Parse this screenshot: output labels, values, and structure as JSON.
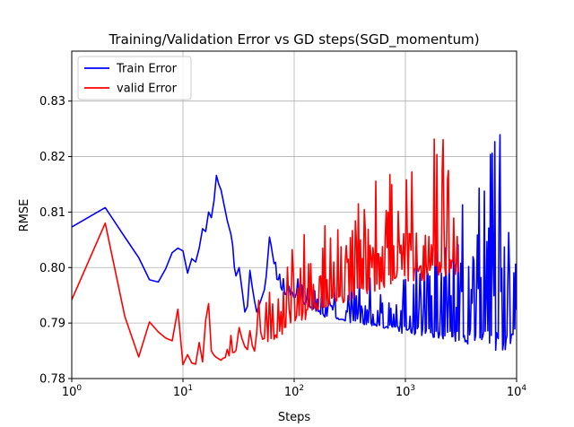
{
  "chart_data": {
    "type": "line",
    "title": "Training/Validation Error vs GD steps(SGD_momentum)",
    "xlabel": "Steps",
    "ylabel": "RMSE",
    "xscale": "log",
    "xlim": [
      1,
      10000
    ],
    "ylim": [
      0.78,
      0.839
    ],
    "grid": true,
    "legend_position": "top-left",
    "x_ticks": [
      1,
      10,
      100,
      1000,
      10000
    ],
    "x_tick_labels": [
      {
        "base": "10",
        "exp": "0"
      },
      {
        "base": "10",
        "exp": "1"
      },
      {
        "base": "10",
        "exp": "2"
      },
      {
        "base": "10",
        "exp": "3"
      },
      {
        "base": "10",
        "exp": "4"
      }
    ],
    "y_ticks": [
      0.78,
      0.79,
      0.8,
      0.81,
      0.82,
      0.83
    ],
    "y_tick_labels": [
      "0.78",
      "0.79",
      "0.80",
      "0.81",
      "0.82",
      "0.83"
    ],
    "series": [
      {
        "name": "Train Error",
        "color": "#0000ff",
        "x": [
          1,
          2,
          3,
          4,
          5,
          6,
          7,
          8,
          9,
          10,
          11,
          12,
          13,
          14,
          15,
          16,
          17,
          18,
          19,
          20,
          21,
          22,
          25,
          27,
          28,
          29,
          30,
          32,
          34,
          36,
          38,
          40,
          43,
          46,
          50,
          55,
          60,
          70,
          80,
          100,
          130,
          160,
          200,
          300,
          500,
          700,
          1000,
          2000,
          3000,
          5000,
          7000,
          10000
        ],
        "y": [
          0.8073,
          0.8108,
          0.8055,
          0.8018,
          0.7978,
          0.7974,
          0.7998,
          0.8027,
          0.8035,
          0.803,
          0.799,
          0.8016,
          0.801,
          0.8035,
          0.807,
          0.8065,
          0.81,
          0.809,
          0.812,
          0.8166,
          0.815,
          0.814,
          0.8085,
          0.806,
          0.804,
          0.8,
          0.7985,
          0.8,
          0.796,
          0.792,
          0.793,
          0.7995,
          0.795,
          0.792,
          0.794,
          0.7965,
          0.8055,
          0.798,
          0.7955,
          0.795,
          0.7935,
          0.7925,
          0.7915,
          0.791,
          0.7905,
          0.79,
          0.7895,
          0.7895,
          0.789,
          0.789,
          0.789,
          0.789
        ],
        "noise_upper": [
          0,
          0,
          0,
          0,
          0,
          0,
          0,
          0,
          0,
          0,
          0,
          0,
          0,
          0,
          0,
          0,
          0,
          0,
          0,
          0,
          0,
          0,
          0,
          0,
          0,
          0,
          0,
          0,
          0,
          0,
          0,
          0,
          0,
          0,
          0,
          0,
          0,
          0.002,
          0.003,
          0.004,
          0.004,
          0.005,
          0.006,
          0.007,
          0.008,
          0.009,
          0.012,
          0.018,
          0.022,
          0.028,
          0.036,
          0.02
        ]
      },
      {
        "name": "valid Error",
        "color": "#ff0000",
        "x": [
          1,
          2,
          3,
          4,
          5,
          6,
          7,
          8,
          9,
          10,
          11,
          12,
          13,
          14,
          15,
          16,
          17,
          18,
          19,
          20,
          22,
          25,
          28,
          30,
          35,
          40,
          45,
          50,
          60,
          70,
          80,
          100,
          130,
          160,
          200,
          300,
          500,
          700,
          1000,
          1500,
          2000,
          2500,
          3000
        ],
        "y": [
          0.7942,
          0.808,
          0.7912,
          0.7839,
          0.7902,
          0.7884,
          0.7873,
          0.7868,
          0.7925,
          0.7825,
          0.7843,
          0.7828,
          0.7826,
          0.7865,
          0.783,
          0.7905,
          0.7935,
          0.785,
          0.7842,
          0.7838,
          0.7833,
          0.784,
          0.785,
          0.7855,
          0.7858,
          0.786,
          0.786,
          0.787,
          0.788,
          0.7888,
          0.7895,
          0.791,
          0.7925,
          0.794,
          0.795,
          0.796,
          0.7975,
          0.799,
          0.8,
          0.8005,
          0.801,
          0.8015,
          0.801
        ],
        "noise_upper": [
          0,
          0,
          0,
          0,
          0,
          0,
          0,
          0,
          0,
          0,
          0,
          0,
          0,
          0,
          0,
          0,
          0,
          0,
          0,
          0,
          0,
          0.002,
          0.004,
          0.005,
          0.006,
          0.008,
          0.009,
          0.01,
          0.011,
          0.012,
          0.012,
          0.013,
          0.014,
          0.015,
          0.016,
          0.017,
          0.018,
          0.02,
          0.022,
          0.024,
          0.025,
          0.026,
          0.02
        ]
      }
    ]
  }
}
